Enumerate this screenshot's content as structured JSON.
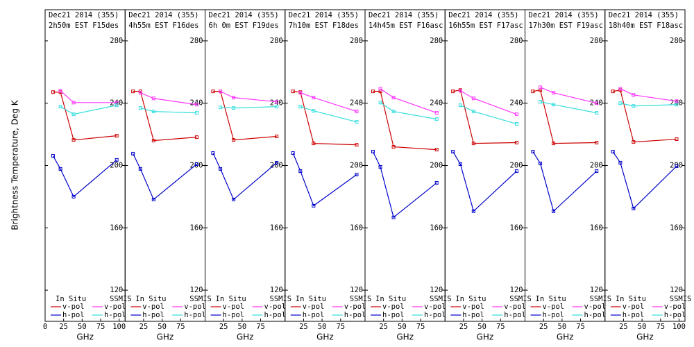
{
  "chart_data": [
    {
      "type": "line",
      "title": "Dec21 2014 (355)",
      "subtitle": "2h50m EST F15des",
      "ylabel": "Brightness Temperature, Deg K",
      "xlabel": "GHz",
      "xlim": [
        0,
        108
      ],
      "xticks": [
        0,
        25,
        50,
        75,
        100
      ],
      "ylim": [
        100,
        300
      ],
      "yticks": [
        120,
        160,
        200,
        240,
        280
      ],
      "legend_groups": [
        "In Situ",
        "SSMIS"
      ],
      "series": [
        {
          "name": "v-pol",
          "group": 0,
          "color": "#cc0000",
          "x": [
            10.7,
            20.7,
            38.5,
            96.7
          ],
          "values": [
            247.1,
            247.1,
            216.4,
            219.1
          ]
        },
        {
          "name": "h-pol",
          "group": 0,
          "color": "#0000cc",
          "x": [
            10.7,
            20.7,
            38.5,
            96.7
          ],
          "values": [
            206.2,
            197.8,
            180,
            203.6
          ]
        },
        {
          "name": "v-pol",
          "group": 1,
          "color": "#ff33ff",
          "x": [
            20.7,
            38.5,
            96.7
          ],
          "values": [
            248,
            240.4,
            240.4
          ]
        },
        {
          "name": "h-pol",
          "group": 1,
          "color": "#33dddd",
          "x": [
            20.7,
            38.5,
            96.7
          ],
          "values": [
            237.8,
            232.9,
            238.7
          ]
        }
      ]
    },
    {
      "type": "line",
      "title": "Dec21 2014 (355)",
      "subtitle": "4h55m EST F16des",
      "xlabel": "GHz",
      "xlim": [
        0,
        108
      ],
      "xticks": [
        25,
        50,
        75
      ],
      "ylim": [
        100,
        300
      ],
      "yticks": [
        120,
        160,
        200,
        240,
        280
      ],
      "legend_groups": [
        "In Situ",
        "SSMIS"
      ],
      "series": [
        {
          "name": "v-pol",
          "group": 0,
          "color": "#cc0000",
          "x": [
            10.7,
            20.7,
            38.5,
            96.7
          ],
          "values": [
            247.6,
            247.6,
            216,
            218.2
          ]
        },
        {
          "name": "h-pol",
          "group": 0,
          "color": "#0000cc",
          "x": [
            10.7,
            20.7,
            38.5,
            96.7
          ],
          "values": [
            207.6,
            197.8,
            178.2,
            200.9
          ]
        },
        {
          "name": "v-pol",
          "group": 1,
          "color": "#ff33ff",
          "x": [
            20.7,
            38.5,
            96.7
          ],
          "values": [
            246.7,
            243.1,
            239.1
          ]
        },
        {
          "name": "h-pol",
          "group": 1,
          "color": "#33dddd",
          "x": [
            20.7,
            38.5,
            96.7
          ],
          "values": [
            236.9,
            234.7,
            233.8
          ]
        }
      ]
    },
    {
      "type": "line",
      "title": "Dec21 2014 (355)",
      "subtitle": "6h 0m EST F19des",
      "xlabel": "GHz",
      "xlim": [
        0,
        108
      ],
      "xticks": [
        25,
        50,
        75
      ],
      "ylim": [
        100,
        300
      ],
      "yticks": [
        120,
        160,
        200,
        240,
        280
      ],
      "legend_groups": [
        "In Situ",
        "SSMIS"
      ],
      "series": [
        {
          "name": "v-pol",
          "group": 0,
          "color": "#cc0000",
          "x": [
            10.7,
            20.7,
            38.5,
            96.7
          ],
          "values": [
            247.6,
            247.6,
            216.4,
            218.7
          ]
        },
        {
          "name": "h-pol",
          "group": 0,
          "color": "#0000cc",
          "x": [
            10.7,
            20.7,
            38.5,
            96.7
          ],
          "values": [
            208,
            197.8,
            178.2,
            201.8
          ]
        },
        {
          "name": "v-pol",
          "group": 1,
          "color": "#ff33ff",
          "x": [
            20.7,
            38.5,
            96.7
          ],
          "values": [
            247.6,
            243.6,
            240.9
          ]
        },
        {
          "name": "h-pol",
          "group": 1,
          "color": "#33dddd",
          "x": [
            20.7,
            38.5,
            96.7
          ],
          "values": [
            237.3,
            236.9,
            237.8
          ]
        }
      ]
    },
    {
      "type": "line",
      "title": "Dec21 2014 (355)",
      "subtitle": "7h10m EST F18des",
      "xlabel": "GHz",
      "xlim": [
        0,
        108
      ],
      "xticks": [
        25,
        50,
        75
      ],
      "ylim": [
        100,
        300
      ],
      "yticks": [
        120,
        160,
        200,
        240,
        280
      ],
      "legend_groups": [
        "In Situ",
        "SSMIS"
      ],
      "series": [
        {
          "name": "v-pol",
          "group": 0,
          "color": "#cc0000",
          "x": [
            10.7,
            20.7,
            38.5,
            96.7
          ],
          "values": [
            247.6,
            247.1,
            214.2,
            213.3
          ]
        },
        {
          "name": "h-pol",
          "group": 0,
          "color": "#0000cc",
          "x": [
            10.7,
            20.7,
            38.5,
            96.7
          ],
          "values": [
            208,
            196.4,
            174.2,
            194.2
          ]
        },
        {
          "name": "v-pol",
          "group": 1,
          "color": "#ff33ff",
          "x": [
            20.7,
            38.5,
            96.7
          ],
          "values": [
            246.7,
            243.6,
            234.7
          ]
        },
        {
          "name": "h-pol",
          "group": 1,
          "color": "#33dddd",
          "x": [
            20.7,
            38.5,
            96.7
          ],
          "values": [
            237.8,
            235.1,
            228
          ]
        }
      ]
    },
    {
      "type": "line",
      "title": "Dec21 2014 (355)",
      "subtitle": "14h45m EST F16asc",
      "xlabel": "GHz",
      "xlim": [
        0,
        108
      ],
      "xticks": [
        25,
        50,
        75
      ],
      "ylim": [
        100,
        300
      ],
      "yticks": [
        120,
        160,
        200,
        240,
        280
      ],
      "legend_groups": [
        "In Situ",
        "SSMIS"
      ],
      "series": [
        {
          "name": "v-pol",
          "group": 0,
          "color": "#cc0000",
          "x": [
            10.7,
            20.7,
            38.5,
            96.7
          ],
          "values": [
            247.6,
            247.6,
            212,
            210.2
          ]
        },
        {
          "name": "h-pol",
          "group": 0,
          "color": "#0000cc",
          "x": [
            10.7,
            20.7,
            38.5,
            96.7
          ],
          "values": [
            208.9,
            199.1,
            166.7,
            188.9
          ]
        },
        {
          "name": "v-pol",
          "group": 1,
          "color": "#ff33ff",
          "x": [
            20.7,
            38.5,
            96.7
          ],
          "values": [
            249.3,
            243.6,
            233.8
          ]
        },
        {
          "name": "h-pol",
          "group": 1,
          "color": "#33dddd",
          "x": [
            20.7,
            38.5,
            96.7
          ],
          "values": [
            240.4,
            234.7,
            229.8
          ]
        }
      ]
    },
    {
      "type": "line",
      "title": "Dec21 2014 (355)",
      "subtitle": "16h55m EST F17asc",
      "xlabel": "GHz",
      "xlim": [
        0,
        108
      ],
      "xticks": [
        25,
        50,
        75
      ],
      "ylim": [
        100,
        300
      ],
      "yticks": [
        120,
        160,
        200,
        240,
        280
      ],
      "legend_groups": [
        "In Situ",
        "SSMIS"
      ],
      "series": [
        {
          "name": "v-pol",
          "group": 0,
          "color": "#cc0000",
          "x": [
            10.7,
            20.7,
            38.5,
            96.7
          ],
          "values": [
            247.6,
            248.4,
            214.2,
            214.7
          ]
        },
        {
          "name": "h-pol",
          "group": 0,
          "color": "#0000cc",
          "x": [
            10.7,
            20.7,
            38.5,
            96.7
          ],
          "values": [
            208.9,
            200.9,
            170.7,
            196.4
          ]
        },
        {
          "name": "v-pol",
          "group": 1,
          "color": "#ff33ff",
          "x": [
            20.7,
            38.5,
            96.7
          ],
          "values": [
            248,
            243.1,
            232.9
          ]
        },
        {
          "name": "h-pol",
          "group": 1,
          "color": "#33dddd",
          "x": [
            20.7,
            38.5,
            96.7
          ],
          "values": [
            238.7,
            234.7,
            226.7
          ]
        }
      ]
    },
    {
      "type": "line",
      "title": "Dec21 2014 (355)",
      "subtitle": "17h30m EST F19asc",
      "xlabel": "GHz",
      "xlim": [
        0,
        108
      ],
      "xticks": [
        25,
        50,
        75
      ],
      "ylim": [
        100,
        300
      ],
      "yticks": [
        120,
        160,
        200,
        240,
        280
      ],
      "legend_groups": [
        "In Situ",
        "SSMIS"
      ],
      "series": [
        {
          "name": "v-pol",
          "group": 0,
          "color": "#cc0000",
          "x": [
            10.7,
            20.7,
            38.5,
            96.7
          ],
          "values": [
            247.6,
            248.4,
            214.2,
            214.7
          ]
        },
        {
          "name": "h-pol",
          "group": 0,
          "color": "#0000cc",
          "x": [
            10.7,
            20.7,
            38.5,
            96.7
          ],
          "values": [
            208.9,
            201.3,
            170.7,
            196.4
          ]
        },
        {
          "name": "v-pol",
          "group": 1,
          "color": "#ff33ff",
          "x": [
            20.7,
            38.5,
            96.7
          ],
          "values": [
            250.2,
            246.7,
            240
          ]
        },
        {
          "name": "h-pol",
          "group": 1,
          "color": "#33dddd",
          "x": [
            20.7,
            38.5,
            96.7
          ],
          "values": [
            240.9,
            239.1,
            233.8
          ]
        }
      ]
    },
    {
      "type": "line",
      "title": "Dec21 2014 (355)",
      "subtitle": "18h40m EST F18asc",
      "xlabel": "GHz",
      "xlim": [
        0,
        108
      ],
      "xticks": [
        25,
        50,
        75,
        100
      ],
      "ylim": [
        100,
        300
      ],
      "yticks": [
        120,
        160,
        200,
        240,
        280
      ],
      "legend_groups": [
        "In Situ",
        "SSMIS"
      ],
      "series": [
        {
          "name": "v-pol",
          "group": 0,
          "color": "#cc0000",
          "x": [
            10.7,
            20.7,
            38.5,
            96.7
          ],
          "values": [
            247.6,
            248.4,
            215.1,
            216.9
          ]
        },
        {
          "name": "h-pol",
          "group": 0,
          "color": "#0000cc",
          "x": [
            10.7,
            20.7,
            38.5,
            96.7
          ],
          "values": [
            208.9,
            201.8,
            172.4,
            199.6
          ]
        },
        {
          "name": "v-pol",
          "group": 1,
          "color": "#ff33ff",
          "x": [
            20.7,
            38.5,
            96.7
          ],
          "values": [
            249.3,
            245.3,
            241.3
          ]
        },
        {
          "name": "h-pol",
          "group": 1,
          "color": "#33dddd",
          "x": [
            20.7,
            38.5,
            96.7
          ],
          "values": [
            240,
            238.2,
            239.1
          ]
        }
      ]
    }
  ]
}
